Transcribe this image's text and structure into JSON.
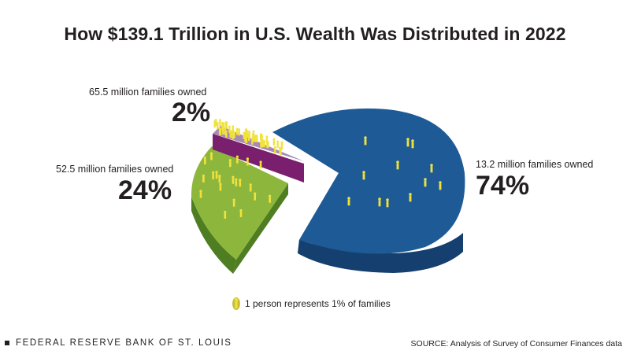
{
  "colors": {
    "top_rich": "#1d5a96",
    "side_rich": "#143f6e",
    "top_middle": "#8db63c",
    "side_middle": "#4f7d22",
    "top_poor": "#a78bb5",
    "side_poor": "#7a1f6e",
    "figure": "#f2e23c"
  },
  "chart_data": {
    "type": "pie",
    "title": "How $139.1 Trillion in U.S. Wealth Was Distributed in 2022",
    "slices": [
      {
        "label": "13.2 million families owned",
        "value": 74,
        "display": "74%"
      },
      {
        "label": "52.5 million families owned",
        "value": 24,
        "display": "24%"
      },
      {
        "label": "65.5 million families owned",
        "value": 2,
        "display": "2%"
      }
    ],
    "legend": "1 person represents 1% of families"
  },
  "footer": {
    "org": "FEDERAL RESERVE BANK OF ST. LOUIS",
    "source": "SOURCE: Analysis of Survey of Consumer Finances data"
  }
}
